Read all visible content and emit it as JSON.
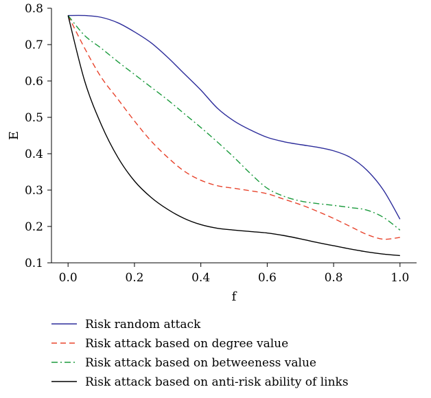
{
  "chart_data": {
    "type": "line",
    "xlabel": "f",
    "ylabel": "E",
    "xlim": [
      -0.05,
      1.05
    ],
    "ylim": [
      0.1,
      0.8
    ],
    "xticks": [
      "0.0",
      "0.2",
      "0.4",
      "0.6",
      "0.8",
      "1.0"
    ],
    "yticks": [
      "0.1",
      "0.2",
      "0.3",
      "0.4",
      "0.5",
      "0.6",
      "0.7",
      "0.8"
    ],
    "legend_position": "bottom",
    "grid": false,
    "series": [
      {
        "name": "Risk random attack",
        "color": "#2b2b9a",
        "dash": "solid",
        "x": [
          0.0,
          0.05,
          0.1,
          0.15,
          0.2,
          0.25,
          0.3,
          0.35,
          0.4,
          0.45,
          0.5,
          0.55,
          0.6,
          0.65,
          0.7,
          0.75,
          0.8,
          0.85,
          0.9,
          0.95,
          1.0
        ],
        "y": [
          0.78,
          0.78,
          0.775,
          0.76,
          0.735,
          0.705,
          0.665,
          0.62,
          0.575,
          0.525,
          0.49,
          0.465,
          0.445,
          0.433,
          0.425,
          0.418,
          0.408,
          0.39,
          0.355,
          0.3,
          0.22
        ]
      },
      {
        "name": "Risk attack based on degree value",
        "color": "#e8432c",
        "dash": "dashed",
        "x": [
          0.0,
          0.05,
          0.1,
          0.15,
          0.2,
          0.25,
          0.3,
          0.35,
          0.4,
          0.45,
          0.5,
          0.55,
          0.6,
          0.65,
          0.7,
          0.75,
          0.8,
          0.85,
          0.9,
          0.95,
          1.0
        ],
        "y": [
          0.78,
          0.69,
          0.61,
          0.55,
          0.49,
          0.435,
          0.39,
          0.352,
          0.327,
          0.312,
          0.305,
          0.298,
          0.29,
          0.275,
          0.26,
          0.242,
          0.222,
          0.2,
          0.178,
          0.165,
          0.17
        ]
      },
      {
        "name": "Risk attack based on betweeness value",
        "color": "#1a9a3c",
        "dash": "dashdot",
        "x": [
          0.0,
          0.05,
          0.1,
          0.15,
          0.2,
          0.25,
          0.3,
          0.35,
          0.4,
          0.45,
          0.5,
          0.55,
          0.6,
          0.65,
          0.7,
          0.75,
          0.8,
          0.85,
          0.9,
          0.95,
          1.0
        ],
        "y": [
          0.78,
          0.725,
          0.69,
          0.653,
          0.618,
          0.583,
          0.548,
          0.51,
          0.472,
          0.432,
          0.39,
          0.345,
          0.305,
          0.283,
          0.27,
          0.263,
          0.258,
          0.252,
          0.245,
          0.225,
          0.19
        ]
      },
      {
        "name": "Risk attack based on anti-risk ability of links",
        "color": "#000000",
        "dash": "solid",
        "x": [
          0.0,
          0.05,
          0.1,
          0.15,
          0.2,
          0.25,
          0.3,
          0.35,
          0.4,
          0.45,
          0.5,
          0.55,
          0.6,
          0.65,
          0.7,
          0.75,
          0.8,
          0.85,
          0.9,
          0.95,
          1.0
        ],
        "y": [
          0.78,
          0.6,
          0.48,
          0.39,
          0.325,
          0.28,
          0.247,
          0.222,
          0.205,
          0.195,
          0.19,
          0.186,
          0.182,
          0.175,
          0.166,
          0.156,
          0.147,
          0.138,
          0.13,
          0.124,
          0.12
        ]
      }
    ]
  }
}
